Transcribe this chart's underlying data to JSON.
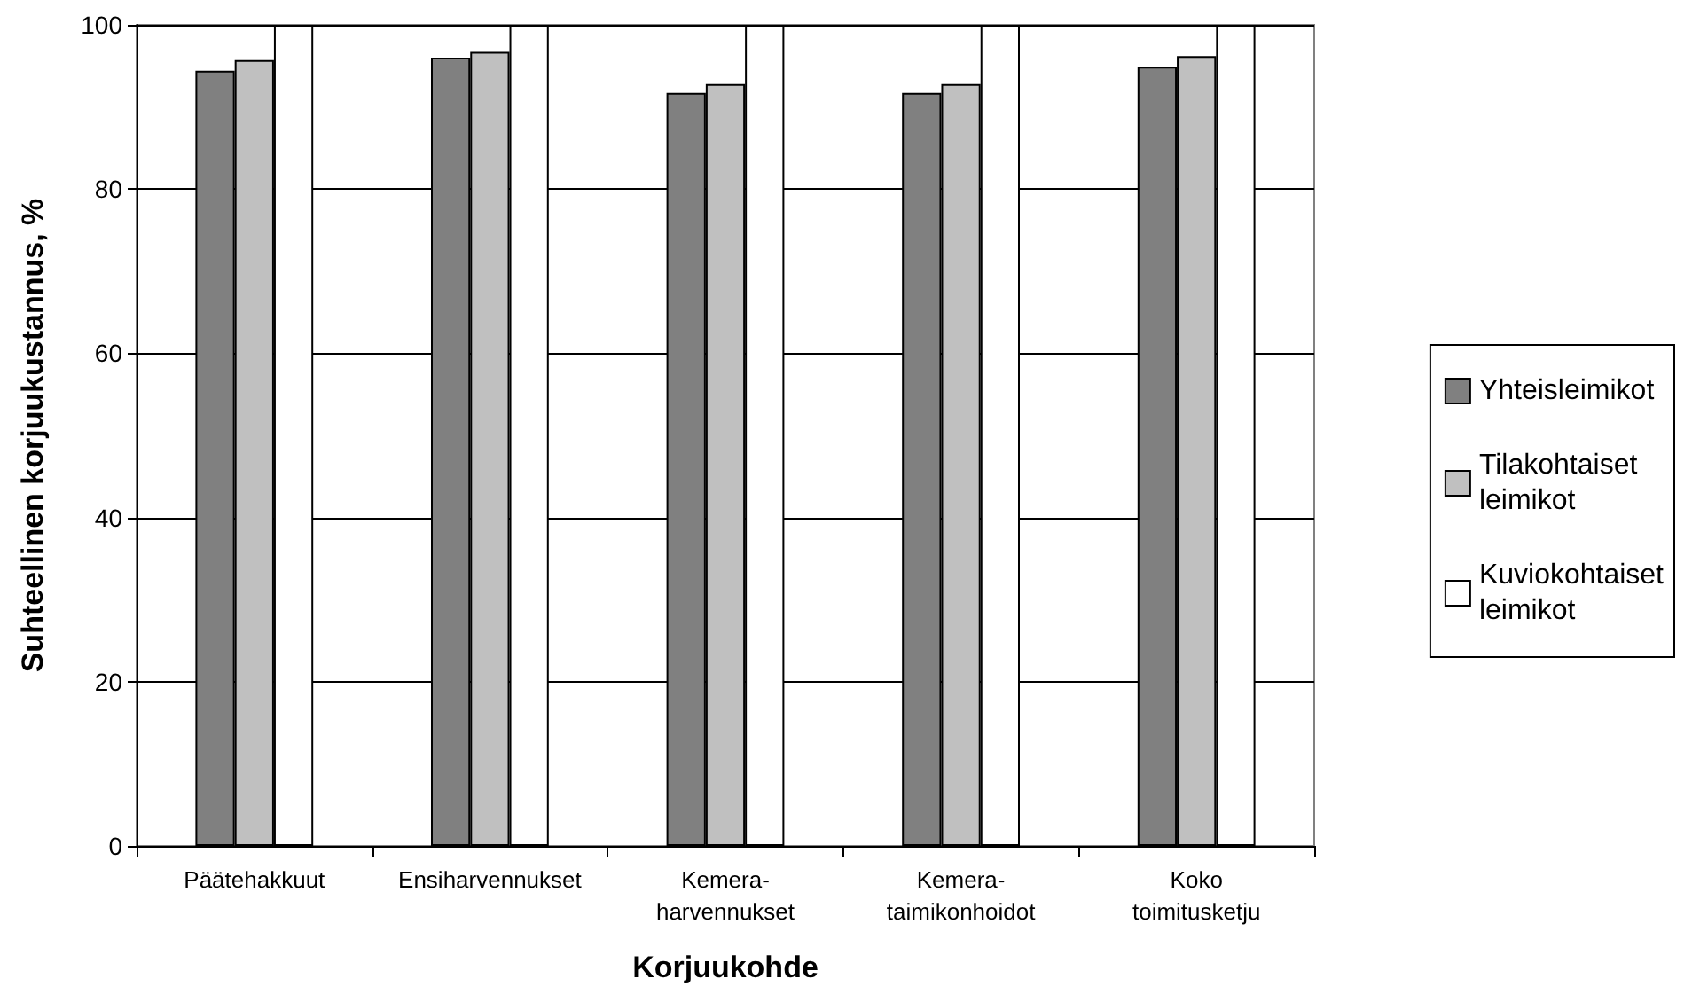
{
  "chart_data": {
    "type": "bar",
    "xlabel": "Korjuukohde",
    "ylabel": "Suhteellinen korjuukustannus, %",
    "categories": [
      "Päätehakkuut",
      "Ensiharvennukset",
      "Kemera-\nharvennukset",
      "Kemera-\ntaimikonhoidot",
      "Koko\ntoimitusketju"
    ],
    "series": [
      {
        "name": "Yhteisleimikot",
        "color": "#808080",
        "values": [
          94.4,
          96.0,
          91.7,
          91.7,
          94.9
        ]
      },
      {
        "name": "Tilakohtaiset\nleimikot",
        "color": "#c0c0c0",
        "values": [
          95.7,
          96.7,
          92.8,
          92.8,
          96.2
        ]
      },
      {
        "name": "Kuviokohtaiset\nleimikot",
        "color": "#ffffff",
        "values": [
          100,
          100,
          100,
          100,
          100
        ]
      }
    ],
    "ylim": [
      0,
      100
    ],
    "yticks": [
      0,
      20,
      40,
      60,
      80,
      100
    ],
    "grid": "y",
    "legend": "right"
  }
}
